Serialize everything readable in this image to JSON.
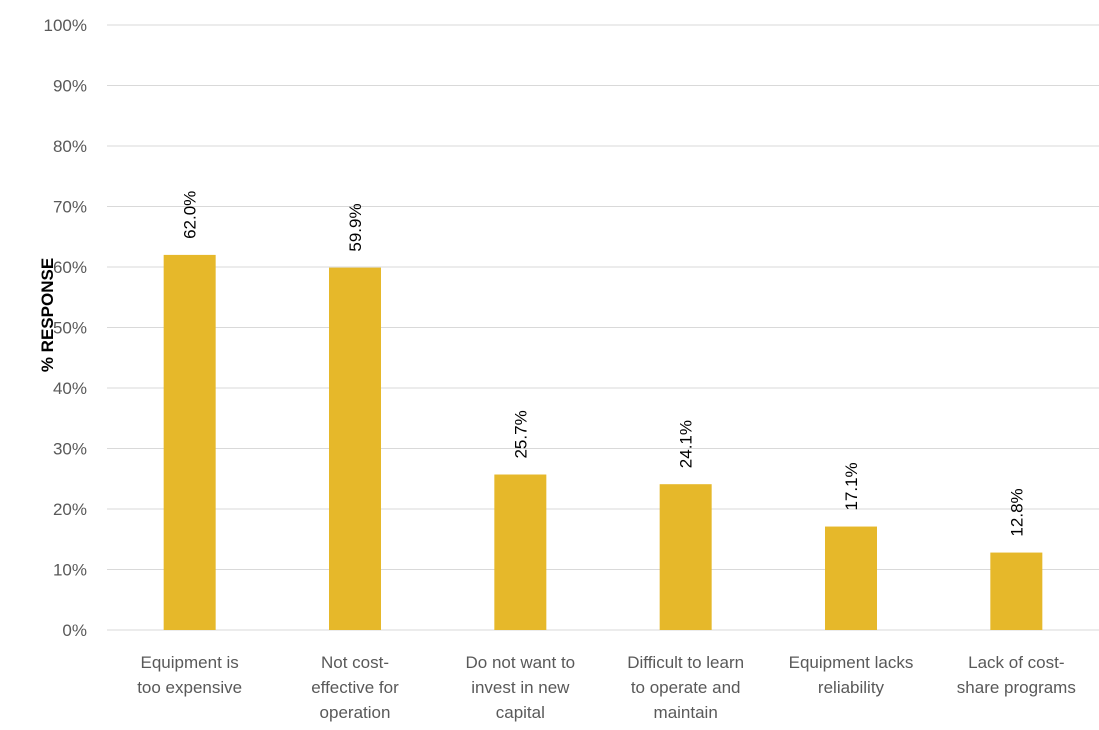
{
  "chart_data": {
    "type": "bar",
    "title": "",
    "xlabel": "",
    "ylabel": "% RESPONSE",
    "ylim": [
      0,
      100
    ],
    "yticks": [
      "0%",
      "10%",
      "20%",
      "30%",
      "40%",
      "50%",
      "60%",
      "70%",
      "80%",
      "90%",
      "100%"
    ],
    "grid": true,
    "bar_color": "#e6b82a",
    "categories": [
      [
        "Equipment is",
        "too expensive"
      ],
      [
        "Not cost-",
        "effective for",
        "operation"
      ],
      [
        "Do not want to",
        "invest in new",
        "capital"
      ],
      [
        "Difficult to learn",
        "to operate and",
        "maintain"
      ],
      [
        "Equipment lacks",
        "reliability"
      ],
      [
        "Lack of cost-",
        "share programs"
      ]
    ],
    "values": [
      62.0,
      59.9,
      25.7,
      24.1,
      17.1,
      12.8
    ],
    "data_labels": [
      "62.0%",
      "59.9%",
      "25.7%",
      "24.1%",
      "17.1%",
      "12.8%"
    ]
  }
}
